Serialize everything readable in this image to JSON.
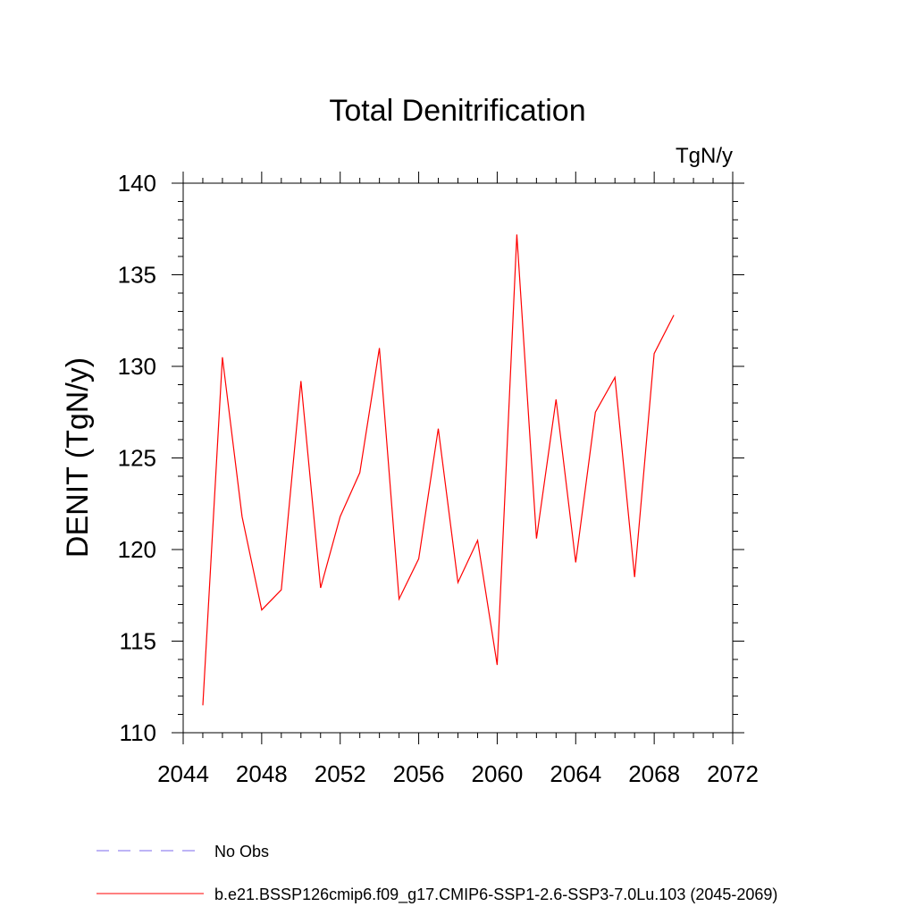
{
  "chart_data": {
    "type": "line",
    "title": "Total Denitrification",
    "units": "TgN/y",
    "ylabel": "DENIT  (TgN/y)",
    "xlabel": "",
    "xlim": [
      2044,
      2072
    ],
    "ylim": [
      110,
      140
    ],
    "x_ticks": [
      2044,
      2048,
      2052,
      2056,
      2060,
      2064,
      2068,
      2072
    ],
    "y_ticks": [
      110,
      115,
      120,
      125,
      130,
      135,
      140
    ],
    "grid": false,
    "legend_position": "bottom-left",
    "series": [
      {
        "name": "b.e21.BSSP126cmip6.f09_g17.CMIP6-SSP1-2.6-SSP3-7.0Lu.103 (2045-2069)",
        "color": "#ff0000",
        "style": "solid",
        "x": [
          2045,
          2046,
          2047,
          2048,
          2049,
          2050,
          2051,
          2052,
          2053,
          2054,
          2055,
          2056,
          2057,
          2058,
          2059,
          2060,
          2061,
          2062,
          2063,
          2064,
          2065,
          2066,
          2067,
          2068,
          2069
        ],
        "y": [
          111.5,
          130.5,
          121.8,
          116.7,
          117.8,
          129.2,
          117.9,
          121.8,
          124.2,
          131.0,
          117.3,
          119.5,
          126.6,
          118.2,
          120.5,
          113.7,
          137.2,
          120.6,
          128.2,
          119.3,
          127.5,
          129.4,
          118.5,
          130.7,
          132.8
        ]
      },
      {
        "name": "No Obs",
        "color": "#7b68ee",
        "style": "dashed",
        "x": [],
        "y": []
      }
    ]
  }
}
